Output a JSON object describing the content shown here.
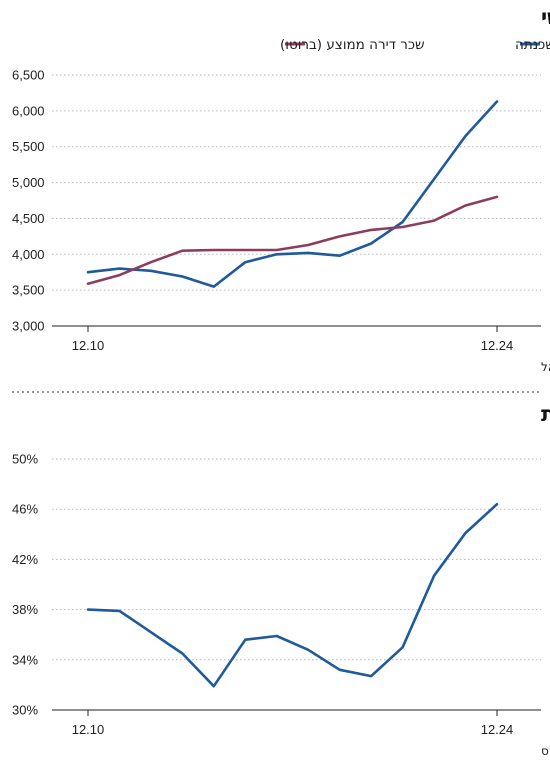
{
  "chart_data": [
    {
      "type": "line",
      "title": "החזרי המשכנתה זינקו יותר משכ\"ד החודשי",
      "x_labels": [
        "12.10",
        "12.24"
      ],
      "ylim": [
        3000,
        6500
      ],
      "y_ticks": [
        "6,500",
        "6,000",
        "5,500",
        "5,000",
        "4,500",
        "4,000",
        "3,500",
        "3,000"
      ],
      "grid": true,
      "legend_position": "top",
      "source": "מקור: עיבוד מיטב ברוקראז' על נתוני הלמ\"ס ובנק ישראל",
      "series": [
        {
          "name": "החזר חודשי ממוצע על משכנתה",
          "color": "#1e5a9c",
          "values": [
            3750,
            3800,
            3770,
            3690,
            3550,
            3890,
            4000,
            4020,
            3980,
            4150,
            4450,
            5050,
            5650,
            6130
          ]
        },
        {
          "name": "שכר דירה ממוצע (ברוטו)",
          "color": "#8c3d5e",
          "values": [
            3590,
            3710,
            3890,
            4050,
            4060,
            4060,
            4060,
            4130,
            4250,
            4340,
            4380,
            4470,
            4680,
            4800
          ]
        }
      ]
    },
    {
      "type": "line",
      "title": "החזרי המשכנתה בדרך לגזור חצי מההכנסה הממוצעת",
      "x_labels": [
        "12.10",
        "12.24"
      ],
      "ylim": [
        30,
        50
      ],
      "y_ticks": [
        "50%",
        "46%",
        "42%",
        "38%",
        "34%",
        "30%"
      ],
      "grid": true,
      "source": "מקור: עיבוד מיטב ברוקראז' על נתוני בנק ישראל והלמ\"ס",
      "series": [
        {
          "color": "#1e5a9c",
          "values": [
            38.0,
            37.9,
            36.2,
            34.5,
            31.9,
            35.6,
            35.9,
            34.8,
            33.2,
            32.7,
            35.0,
            40.7,
            44.1,
            46.4
          ]
        }
      ]
    }
  ]
}
